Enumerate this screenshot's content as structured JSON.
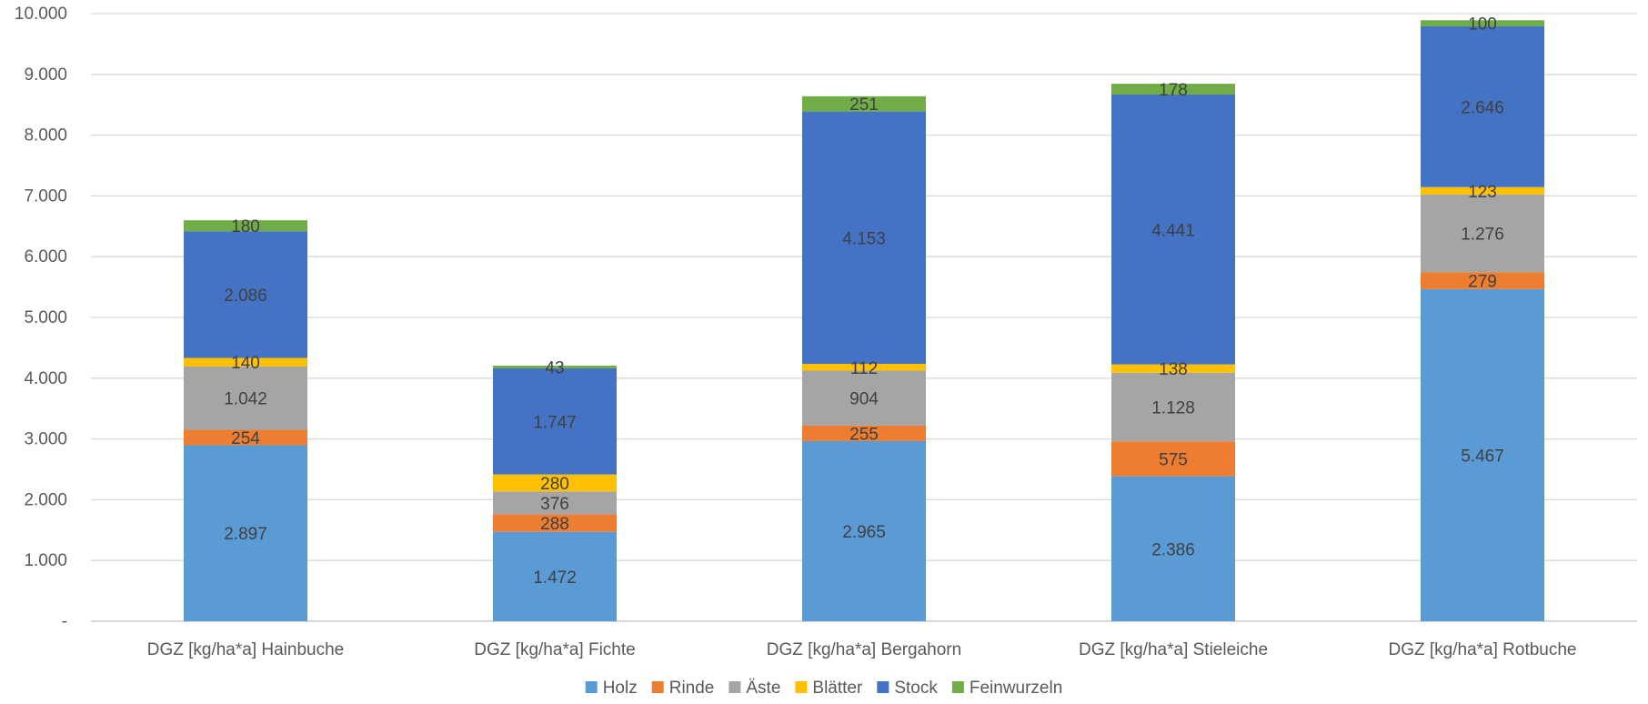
{
  "chart_data": {
    "type": "bar",
    "stacked": true,
    "categories": [
      "DGZ [kg/ha*a] Hainbuche",
      "DGZ [kg/ha*a] Fichte",
      "DGZ [kg/ha*a] Bergahorn",
      "DGZ [kg/ha*a] Stieleiche",
      "DGZ [kg/ha*a] Rotbuche"
    ],
    "series": [
      {
        "name": "Holz",
        "color": "#5B9BD5",
        "values": [
          2897,
          1472,
          2965,
          2386,
          5467
        ],
        "labels": [
          "2.897",
          "1.472",
          "2.965",
          "2.386",
          "5.467"
        ]
      },
      {
        "name": "Rinde",
        "color": "#ED7D31",
        "values": [
          254,
          288,
          255,
          575,
          279
        ],
        "labels": [
          "254",
          "288",
          "255",
          "575",
          "279"
        ]
      },
      {
        "name": "Äste",
        "color": "#A5A5A5",
        "values": [
          1042,
          376,
          904,
          1128,
          1276
        ],
        "labels": [
          "1.042",
          "376",
          "904",
          "1.128",
          "1.276"
        ]
      },
      {
        "name": "Blätter",
        "color": "#FFC000",
        "values": [
          140,
          280,
          112,
          138,
          123
        ],
        "labels": [
          "140",
          "280",
          "112",
          "138",
          "123"
        ]
      },
      {
        "name": "Stock",
        "color": "#4472C4",
        "values": [
          2086,
          1747,
          4153,
          4441,
          2646
        ],
        "labels": [
          "2.086",
          "1.747",
          "4.153",
          "4.441",
          "2.646"
        ]
      },
      {
        "name": "Feinwurzeln",
        "color": "#70AD47",
        "values": [
          180,
          43,
          251,
          178,
          100
        ],
        "labels": [
          "180",
          "43",
          "251",
          "178",
          "100"
        ]
      }
    ],
    "ylim": [
      0,
      10000
    ],
    "yticks": [
      0,
      1000,
      2000,
      3000,
      4000,
      5000,
      6000,
      7000,
      8000,
      9000,
      10000
    ],
    "ytick_labels": [
      "-",
      "1.000",
      "2.000",
      "3.000",
      "4.000",
      "5.000",
      "6.000",
      "7.000",
      "8.000",
      "9.000",
      "10.000"
    ],
    "grid": true,
    "legend_position": "bottom",
    "title": "",
    "xlabel": "",
    "ylabel": ""
  }
}
